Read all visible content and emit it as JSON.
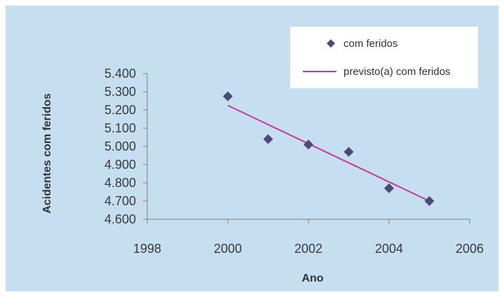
{
  "chart_data": {
    "type": "scatter",
    "title": "",
    "xlabel": "Ano",
    "ylabel": "Acidentes com feridos",
    "xlim": [
      1998,
      2006
    ],
    "ylim": [
      4600,
      5400
    ],
    "x_ticks": [
      "1998",
      "2000",
      "2002",
      "2004",
      "2006"
    ],
    "y_ticks": [
      "4.600",
      "4.700",
      "4.800",
      "4.900",
      "5.000",
      "5.100",
      "5.200",
      "5.300",
      "5.400"
    ],
    "grid": false,
    "legend_position": "top-right",
    "series": [
      {
        "name": "com feridos",
        "kind": "scatter",
        "marker": "diamond",
        "color": "#4b4a78",
        "x": [
          2000,
          2001,
          2002,
          2003,
          2004,
          2005
        ],
        "y": [
          5275,
          5040,
          5010,
          4970,
          4770,
          4700
        ]
      },
      {
        "name": "previsto(a) com feridos",
        "kind": "line",
        "color": "#c8379a",
        "x": [
          2000,
          2005
        ],
        "y": [
          5225,
          4700
        ]
      }
    ]
  }
}
